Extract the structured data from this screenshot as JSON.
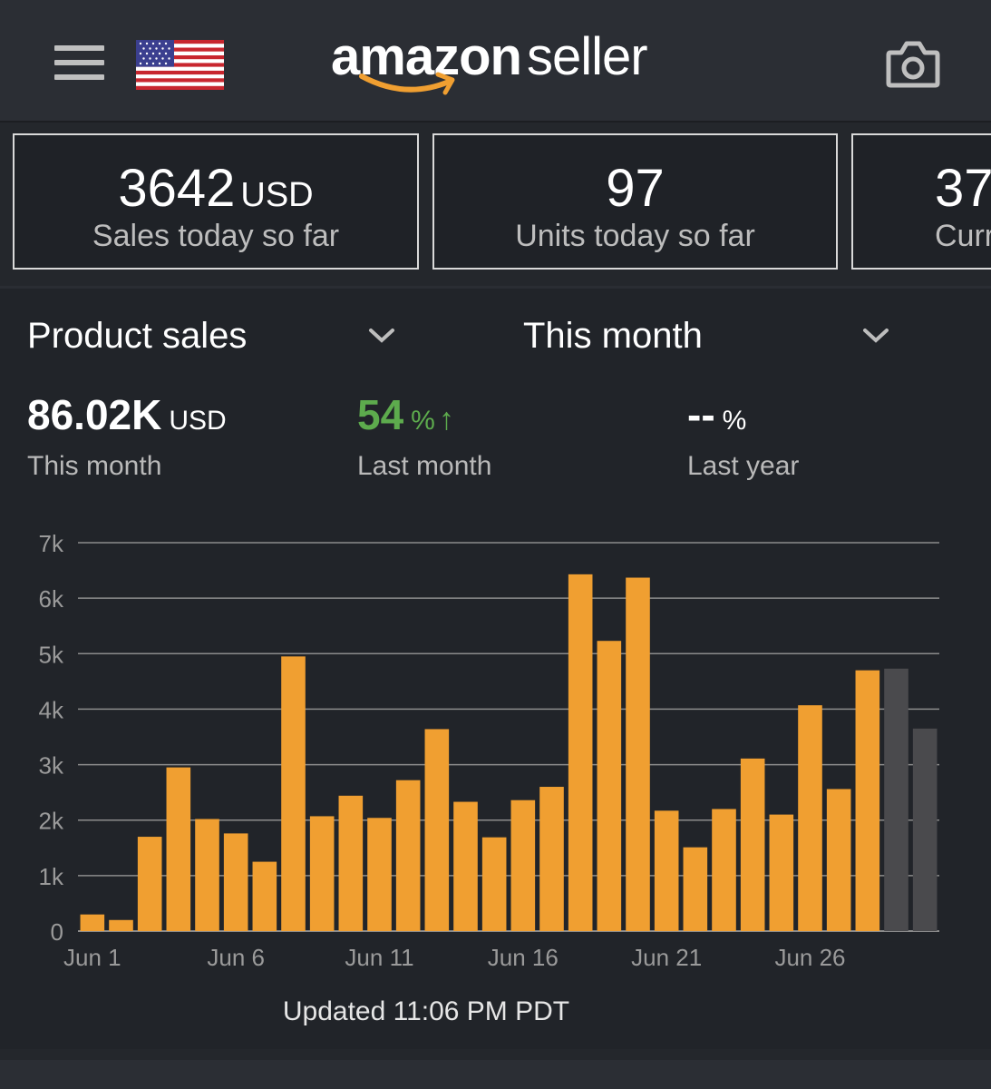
{
  "header": {
    "logo_bold": "amazon",
    "logo_light": "seller",
    "menu_icon": "hamburger-menu-icon",
    "flag_icon": "us-flag-icon",
    "camera_icon": "camera-icon"
  },
  "cards": [
    {
      "value": "3642",
      "unit": "USD",
      "label": "Sales today so far"
    },
    {
      "value": "97",
      "unit": "",
      "label": "Units today so far"
    },
    {
      "value": "37",
      "unit": "",
      "label": "Curr"
    }
  ],
  "filters": {
    "metric": "Product sales",
    "period": "This month"
  },
  "metrics": {
    "current": {
      "value": "86.02K",
      "unit": "USD",
      "label": "This month"
    },
    "last_month": {
      "value": "54",
      "unit": "%",
      "arrow": "↑",
      "label": "Last month"
    },
    "last_year": {
      "value": "--",
      "unit": "%",
      "label": "Last year"
    }
  },
  "colors": {
    "bar": "#f09f31",
    "bar_projected": "#4a4a4d",
    "positive": "#5dab4d",
    "grid": "#8c8c8c"
  },
  "chart_data": {
    "type": "bar",
    "title": "Product sales",
    "xlabel": "",
    "ylabel": "",
    "ylim": [
      0,
      7000
    ],
    "yticks": [
      0,
      1000,
      2000,
      3000,
      4000,
      5000,
      6000,
      7000
    ],
    "ytick_labels": [
      "0",
      "1k",
      "2k",
      "3k",
      "4k",
      "5k",
      "6k",
      "7k"
    ],
    "xtick_labels": [
      "Jun 1",
      "Jun 6",
      "Jun 11",
      "Jun 16",
      "Jun 21",
      "Jun 26"
    ],
    "xtick_days": [
      1,
      6,
      11,
      16,
      21,
      26
    ],
    "categories": [
      "Jun 1",
      "Jun 2",
      "Jun 3",
      "Jun 4",
      "Jun 5",
      "Jun 6",
      "Jun 7",
      "Jun 8",
      "Jun 9",
      "Jun 10",
      "Jun 11",
      "Jun 12",
      "Jun 13",
      "Jun 14",
      "Jun 15",
      "Jun 16",
      "Jun 17",
      "Jun 18",
      "Jun 19",
      "Jun 20",
      "Jun 21",
      "Jun 22",
      "Jun 23",
      "Jun 24",
      "Jun 25",
      "Jun 26",
      "Jun 27",
      "Jun 28",
      "Jun 29",
      "Jun 30"
    ],
    "values": [
      300,
      200,
      1700,
      2950,
      2020,
      1760,
      1250,
      4950,
      2070,
      2440,
      2040,
      2720,
      3640,
      2330,
      1690,
      2360,
      2600,
      6430,
      5230,
      6370,
      2170,
      1510,
      2200,
      3110,
      2100,
      4070,
      2560,
      4700,
      4730,
      3650
    ],
    "projected": [
      false,
      false,
      false,
      false,
      false,
      false,
      false,
      false,
      false,
      false,
      false,
      false,
      false,
      false,
      false,
      false,
      false,
      false,
      false,
      false,
      false,
      false,
      false,
      false,
      false,
      false,
      false,
      false,
      true,
      true
    ]
  },
  "footer": {
    "updated": "Updated 11:06 PM PDT"
  }
}
